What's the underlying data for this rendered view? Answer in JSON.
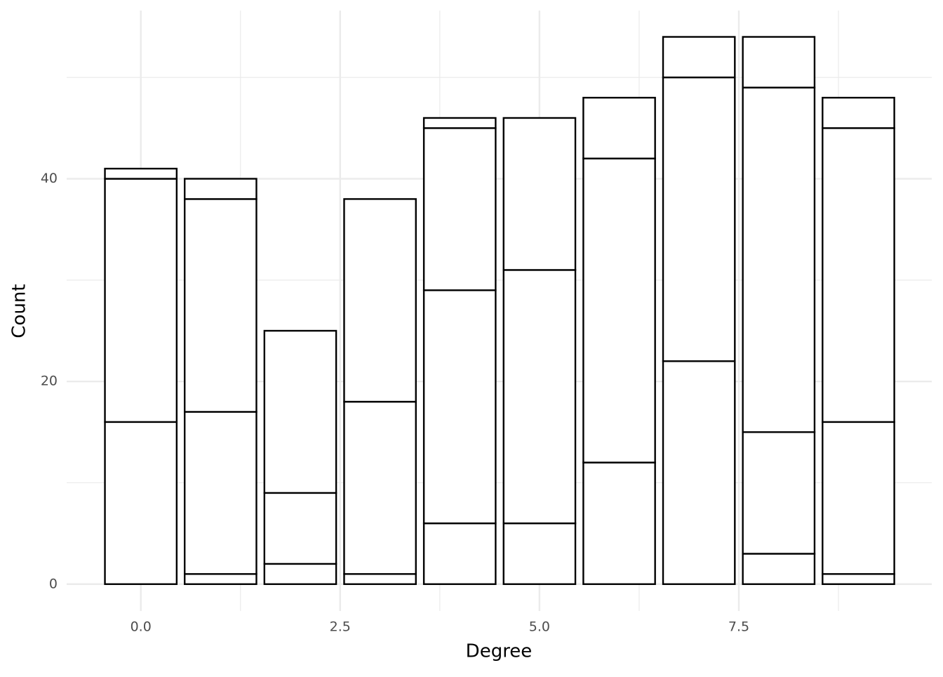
{
  "chart_data": {
    "type": "stacked_bar",
    "x_label": "Degree",
    "y_label": "Count",
    "x": [
      0,
      1,
      2,
      3,
      4,
      5,
      6,
      7,
      8,
      9
    ],
    "series": [
      {
        "color": "#ffffff",
        "values": [
          0,
          1,
          2,
          1,
          6,
          6,
          12,
          22,
          3,
          1
        ]
      },
      {
        "color": "#ffffff",
        "values": [
          16,
          16,
          7,
          17,
          23,
          25,
          30,
          28,
          12,
          15
        ]
      },
      {
        "color": "#ffffff",
        "values": [
          24,
          21,
          16,
          20,
          16,
          15,
          6,
          4,
          34,
          29
        ]
      },
      {
        "color": "#ffffff",
        "values": [
          1,
          2,
          0,
          0,
          1,
          0,
          0,
          0,
          5,
          3
        ]
      }
    ],
    "outline_color": "#000000",
    "xlim": [
      -0.93,
      9.92
    ],
    "ylim": [
      -2.65,
      56.6
    ],
    "xticks": [
      {
        "value": 0,
        "label": "0.0"
      },
      2.5,
      {
        "value": 5,
        "label": "5.0"
      },
      7.5
    ],
    "yticks": [
      0,
      20,
      40
    ],
    "minor_xticks": [
      1.25,
      3.75,
      6.25,
      8.75
    ],
    "minor_yticks": [
      10,
      30,
      50
    ],
    "grid": true
  }
}
